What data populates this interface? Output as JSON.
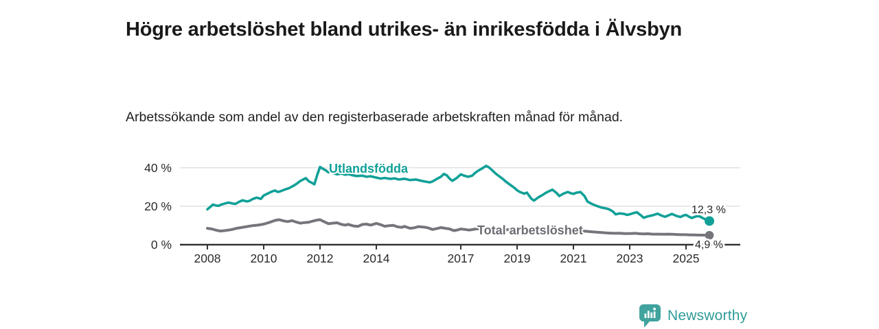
{
  "header": {
    "title": "Högre arbetslöshet bland utrikes- än inrikesfödda i Älvsbyn",
    "subtitle": "Arbetssökande som andel av den registerbaserade arbetskraften månad för månad."
  },
  "footer": {
    "brand": "Newsworthy",
    "logo_icon": "bar-chart-speech-bubble-icon",
    "logo_color": "#40a39e",
    "logo_text_color": "#2e9c98"
  },
  "colors": {
    "accent_teal": "#10a097",
    "series_gray": "#76757c",
    "gray_label": "#6d6c73",
    "axis": "#333333",
    "grid": "#dcdcdc",
    "tick_text": "#2b2b2b",
    "end_label_text": "#222222",
    "background": "#ffffff"
  },
  "chart_data": {
    "type": "line",
    "title": "",
    "xlabel": "",
    "ylabel": "",
    "grid": "horizontal gridlines at 20% and 40%, legend as inline series labels",
    "x_range": [
      2008,
      2025.9
    ],
    "ylim": [
      0,
      44
    ],
    "y_ticks": [
      {
        "value": 0,
        "label": "0 %"
      },
      {
        "value": 20,
        "label": "20 %"
      },
      {
        "value": 40,
        "label": "40 %"
      }
    ],
    "x_ticks": [
      "2008",
      "2010",
      "2012",
      "2014",
      "2017",
      "2019",
      "2021",
      "2023",
      "2025"
    ],
    "x_tick_years": [
      2008,
      2010,
      2012,
      2014,
      2017,
      2019,
      2021,
      2023,
      2025
    ],
    "series": [
      {
        "name": "Utlandsfödda",
        "color": "#10a097",
        "end_label": "12,3 %",
        "end_value": 12.3,
        "points": [
          [
            2008.0,
            18.4
          ],
          [
            2008.1,
            19.6
          ],
          [
            2008.2,
            20.9
          ],
          [
            2008.3,
            20.4
          ],
          [
            2008.4,
            20.2
          ],
          [
            2008.5,
            20.9
          ],
          [
            2008.6,
            21.3
          ],
          [
            2008.75,
            21.9
          ],
          [
            2008.9,
            21.4
          ],
          [
            2009.0,
            21.2
          ],
          [
            2009.1,
            22.1
          ],
          [
            2009.25,
            23.1
          ],
          [
            2009.4,
            22.5
          ],
          [
            2009.5,
            22.8
          ],
          [
            2009.6,
            23.7
          ],
          [
            2009.75,
            24.5
          ],
          [
            2009.9,
            23.8
          ],
          [
            2010.0,
            25.6
          ],
          [
            2010.1,
            26.3
          ],
          [
            2010.2,
            27.0
          ],
          [
            2010.3,
            27.7
          ],
          [
            2010.4,
            28.2
          ],
          [
            2010.5,
            27.4
          ],
          [
            2010.6,
            27.8
          ],
          [
            2010.75,
            28.7
          ],
          [
            2010.9,
            29.4
          ],
          [
            2011.0,
            30.2
          ],
          [
            2011.1,
            31.0
          ],
          [
            2011.2,
            32.0
          ],
          [
            2011.3,
            33.1
          ],
          [
            2011.4,
            33.9
          ],
          [
            2011.5,
            34.6
          ],
          [
            2011.6,
            33.0
          ],
          [
            2011.7,
            32.2
          ],
          [
            2011.8,
            31.4
          ],
          [
            2011.9,
            36.2
          ],
          [
            2012.0,
            40.4
          ],
          [
            2012.1,
            39.5
          ],
          [
            2012.2,
            38.7
          ],
          [
            2012.3,
            37.6
          ],
          [
            2012.4,
            38.2
          ],
          [
            2012.5,
            37.1
          ],
          [
            2012.6,
            36.6
          ],
          [
            2012.75,
            37.0
          ],
          [
            2012.9,
            36.4
          ],
          [
            2013.0,
            36.7
          ],
          [
            2013.15,
            36.1
          ],
          [
            2013.3,
            35.7
          ],
          [
            2013.5,
            35.9
          ],
          [
            2013.65,
            35.3
          ],
          [
            2013.8,
            35.6
          ],
          [
            2014.0,
            34.9
          ],
          [
            2014.15,
            34.4
          ],
          [
            2014.3,
            34.7
          ],
          [
            2014.5,
            34.2
          ],
          [
            2014.65,
            34.5
          ],
          [
            2014.8,
            33.9
          ],
          [
            2015.0,
            34.3
          ],
          [
            2015.2,
            33.6
          ],
          [
            2015.4,
            33.9
          ],
          [
            2015.6,
            33.2
          ],
          [
            2015.75,
            32.8
          ],
          [
            2015.9,
            32.4
          ],
          [
            2016.0,
            32.9
          ],
          [
            2016.15,
            34.2
          ],
          [
            2016.3,
            35.4
          ],
          [
            2016.4,
            36.8
          ],
          [
            2016.5,
            36.1
          ],
          [
            2016.6,
            34.4
          ],
          [
            2016.7,
            33.2
          ],
          [
            2016.85,
            34.6
          ],
          [
            2017.0,
            36.6
          ],
          [
            2017.1,
            36.0
          ],
          [
            2017.25,
            35.3
          ],
          [
            2017.4,
            35.8
          ],
          [
            2017.5,
            37.2
          ],
          [
            2017.6,
            38.3
          ],
          [
            2017.75,
            39.6
          ],
          [
            2017.9,
            41.0
          ],
          [
            2018.0,
            40.2
          ],
          [
            2018.1,
            38.9
          ],
          [
            2018.25,
            36.8
          ],
          [
            2018.4,
            35.2
          ],
          [
            2018.5,
            34.1
          ],
          [
            2018.6,
            32.8
          ],
          [
            2018.75,
            31.2
          ],
          [
            2018.9,
            29.6
          ],
          [
            2019.0,
            28.3
          ],
          [
            2019.1,
            27.4
          ],
          [
            2019.25,
            26.5
          ],
          [
            2019.35,
            27.1
          ],
          [
            2019.5,
            24.0
          ],
          [
            2019.6,
            22.9
          ],
          [
            2019.75,
            24.6
          ],
          [
            2019.9,
            25.8
          ],
          [
            2020.0,
            26.8
          ],
          [
            2020.1,
            27.6
          ],
          [
            2020.25,
            28.6
          ],
          [
            2020.4,
            26.9
          ],
          [
            2020.5,
            25.3
          ],
          [
            2020.65,
            26.6
          ],
          [
            2020.8,
            27.4
          ],
          [
            2020.9,
            26.8
          ],
          [
            2021.0,
            26.4
          ],
          [
            2021.1,
            27.0
          ],
          [
            2021.25,
            27.4
          ],
          [
            2021.4,
            25.2
          ],
          [
            2021.5,
            22.4
          ],
          [
            2021.65,
            21.2
          ],
          [
            2021.8,
            20.3
          ],
          [
            2021.9,
            19.8
          ],
          [
            2022.0,
            19.3
          ],
          [
            2022.15,
            18.9
          ],
          [
            2022.25,
            18.5
          ],
          [
            2022.4,
            17.3
          ],
          [
            2022.5,
            15.8
          ],
          [
            2022.65,
            16.3
          ],
          [
            2022.8,
            16.0
          ],
          [
            2022.9,
            15.5
          ],
          [
            2023.0,
            15.8
          ],
          [
            2023.15,
            16.5
          ],
          [
            2023.25,
            16.9
          ],
          [
            2023.4,
            15.2
          ],
          [
            2023.5,
            14.0
          ],
          [
            2023.65,
            14.8
          ],
          [
            2023.8,
            15.2
          ],
          [
            2023.9,
            15.7
          ],
          [
            2024.0,
            16.1
          ],
          [
            2024.1,
            15.3
          ],
          [
            2024.25,
            14.5
          ],
          [
            2024.4,
            15.4
          ],
          [
            2024.5,
            16.0
          ],
          [
            2024.65,
            15.0
          ],
          [
            2024.8,
            14.4
          ],
          [
            2024.9,
            15.1
          ],
          [
            2025.0,
            15.5
          ],
          [
            2025.1,
            14.6
          ],
          [
            2025.2,
            13.9
          ],
          [
            2025.3,
            14.4
          ],
          [
            2025.4,
            14.9
          ],
          [
            2025.5,
            14.6
          ],
          [
            2025.6,
            13.8
          ],
          [
            2025.7,
            13.1
          ],
          [
            2025.83,
            12.3
          ]
        ]
      },
      {
        "name": "Total arbetslöshet",
        "color": "#76757c",
        "end_label": "4,9 %",
        "end_value": 4.9,
        "points": [
          [
            2008.0,
            8.5
          ],
          [
            2008.15,
            8.2
          ],
          [
            2008.3,
            7.6
          ],
          [
            2008.45,
            7.1
          ],
          [
            2008.6,
            7.3
          ],
          [
            2008.75,
            7.6
          ],
          [
            2008.9,
            8.0
          ],
          [
            2009.0,
            8.4
          ],
          [
            2009.2,
            8.9
          ],
          [
            2009.4,
            9.4
          ],
          [
            2009.6,
            9.9
          ],
          [
            2009.8,
            10.2
          ],
          [
            2010.0,
            10.7
          ],
          [
            2010.2,
            11.6
          ],
          [
            2010.4,
            12.6
          ],
          [
            2010.55,
            13.0
          ],
          [
            2010.7,
            12.4
          ],
          [
            2010.85,
            12.0
          ],
          [
            2011.0,
            12.5
          ],
          [
            2011.15,
            11.8
          ],
          [
            2011.3,
            11.2
          ],
          [
            2011.45,
            11.5
          ],
          [
            2011.6,
            11.7
          ],
          [
            2011.75,
            12.3
          ],
          [
            2011.9,
            12.8
          ],
          [
            2012.0,
            13.0
          ],
          [
            2012.15,
            11.9
          ],
          [
            2012.3,
            10.9
          ],
          [
            2012.45,
            11.2
          ],
          [
            2012.6,
            11.4
          ],
          [
            2012.75,
            10.6
          ],
          [
            2012.9,
            10.2
          ],
          [
            2013.0,
            10.6
          ],
          [
            2013.2,
            9.7
          ],
          [
            2013.35,
            9.5
          ],
          [
            2013.5,
            10.5
          ],
          [
            2013.65,
            10.7
          ],
          [
            2013.8,
            10.2
          ],
          [
            2014.0,
            11.1
          ],
          [
            2014.15,
            10.4
          ],
          [
            2014.3,
            9.6
          ],
          [
            2014.45,
            9.9
          ],
          [
            2014.6,
            10.1
          ],
          [
            2014.75,
            9.3
          ],
          [
            2014.9,
            9.0
          ],
          [
            2015.0,
            9.5
          ],
          [
            2015.2,
            8.5
          ],
          [
            2015.35,
            8.8
          ],
          [
            2015.5,
            9.4
          ],
          [
            2015.65,
            9.2
          ],
          [
            2015.8,
            8.9
          ],
          [
            2016.0,
            7.9
          ],
          [
            2016.15,
            8.4
          ],
          [
            2016.3,
            8.9
          ],
          [
            2016.45,
            8.5
          ],
          [
            2016.6,
            8.2
          ],
          [
            2016.75,
            7.3
          ],
          [
            2016.9,
            7.7
          ],
          [
            2017.0,
            8.2
          ],
          [
            2017.15,
            7.9
          ],
          [
            2017.3,
            7.6
          ],
          [
            2017.45,
            8.0
          ],
          [
            2017.6,
            8.3
          ],
          [
            2017.8,
            8.0
          ],
          [
            2018.0,
            8.2
          ],
          [
            2018.25,
            7.8
          ],
          [
            2018.5,
            7.6
          ],
          [
            2018.75,
            7.9
          ],
          [
            2019.0,
            8.1
          ],
          [
            2019.25,
            7.7
          ],
          [
            2019.5,
            7.3
          ],
          [
            2019.75,
            7.6
          ],
          [
            2020.0,
            8.1
          ],
          [
            2020.25,
            8.4
          ],
          [
            2020.5,
            8.1
          ],
          [
            2020.75,
            7.8
          ],
          [
            2021.0,
            7.5
          ],
          [
            2021.25,
            7.2
          ],
          [
            2021.5,
            6.9
          ],
          [
            2021.75,
            6.6
          ],
          [
            2022.0,
            6.3
          ],
          [
            2022.2,
            6.1
          ],
          [
            2022.35,
            6.0
          ],
          [
            2022.5,
            5.9
          ],
          [
            2022.65,
            6.0
          ],
          [
            2022.8,
            5.8
          ],
          [
            2023.0,
            5.8
          ],
          [
            2023.2,
            5.9
          ],
          [
            2023.35,
            5.7
          ],
          [
            2023.5,
            5.6
          ],
          [
            2023.65,
            5.7
          ],
          [
            2023.8,
            5.5
          ],
          [
            2024.0,
            5.5
          ],
          [
            2024.2,
            5.4
          ],
          [
            2024.35,
            5.5
          ],
          [
            2024.5,
            5.4
          ],
          [
            2024.65,
            5.3
          ],
          [
            2024.8,
            5.2
          ],
          [
            2025.0,
            5.2
          ],
          [
            2025.15,
            5.1
          ],
          [
            2025.3,
            5.1
          ],
          [
            2025.45,
            5.0
          ],
          [
            2025.6,
            5.0
          ],
          [
            2025.7,
            4.9
          ],
          [
            2025.83,
            4.9
          ]
        ]
      }
    ],
    "annotations": [
      {
        "text": "Utlandsfödda",
        "series": 0,
        "near_x": 2012.3,
        "near_y": 40
      },
      {
        "text": "Total arbetslöshet",
        "series": 1,
        "near_x": 2017.6,
        "near_y": 7.8
      },
      {
        "text": "12,3 %",
        "series": 0,
        "type": "end-value"
      },
      {
        "text": "4,9 %",
        "series": 1,
        "type": "end-value"
      }
    ],
    "legend_position": "inline-labels-on-lines"
  }
}
